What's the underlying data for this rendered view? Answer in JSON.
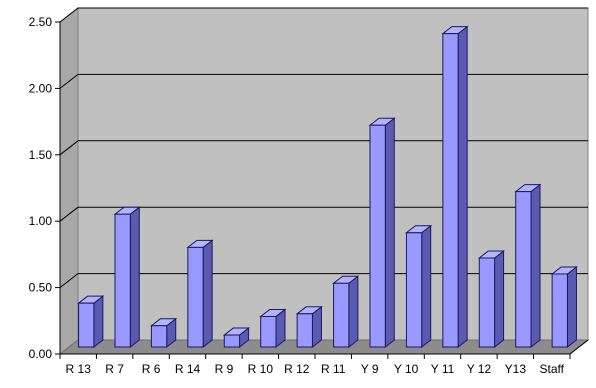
{
  "chart_data": {
    "type": "bar",
    "categories": [
      "R 13",
      "R 7",
      "R 6",
      "R 14",
      "R 9",
      "R 10",
      "R 12",
      "R 11",
      "Y 9",
      "Y 10",
      "Y 11",
      "Y 12",
      "Y13",
      "Staff"
    ],
    "values": [
      0.33,
      1.0,
      0.16,
      0.75,
      0.09,
      0.23,
      0.25,
      0.48,
      1.67,
      0.86,
      2.36,
      0.67,
      1.17,
      0.55
    ],
    "y_tick_labels": [
      "0.00",
      "0.50",
      "1.00",
      "1.50",
      "2.00",
      "2.50"
    ],
    "ylim": [
      0,
      2.5
    ],
    "grid": true,
    "style": "3d-column",
    "colors": {
      "bar_front": "#9999ff",
      "bar_top": "#b3b3ff",
      "bar_side": "#5a5ab0",
      "bar_stroke": "#1a1a5e",
      "back_wall": "#c0c0c0",
      "side_wall": "#a8a8a8",
      "floor": "#8c8c8c",
      "gridline": "#000000"
    }
  }
}
